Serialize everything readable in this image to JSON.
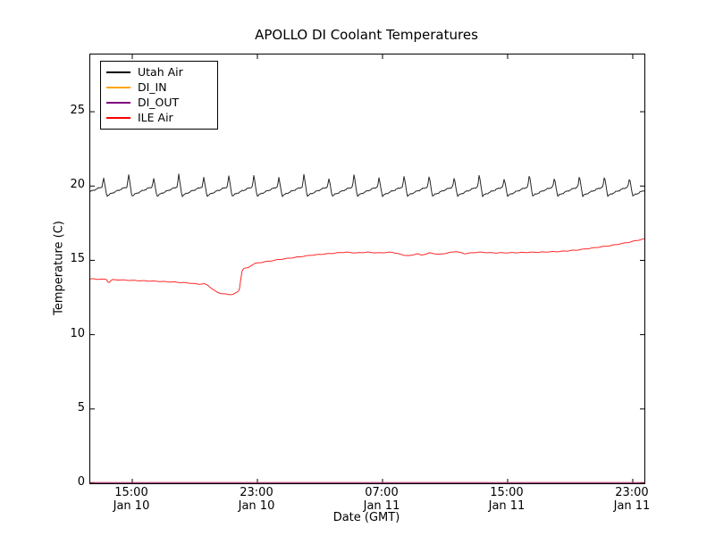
{
  "title": "APOLLO DI Coolant Temperatures",
  "chart_data": {
    "type": "line",
    "title": "APOLLO DI Coolant Temperatures",
    "xlabel": "Date (GMT)",
    "ylabel": "Temperature (C)",
    "ylim": [
      0,
      28.85
    ],
    "grid": false,
    "legend_position": "upper-left",
    "y_ticks": [
      {
        "label": "0",
        "value": 0
      },
      {
        "label": "5",
        "value": 5
      },
      {
        "label": "10",
        "value": 10
      },
      {
        "label": "15",
        "value": 15
      },
      {
        "label": "20",
        "value": 20
      },
      {
        "label": "25",
        "value": 25
      }
    ],
    "x_ticks": [
      {
        "time": "15:00",
        "date": "Jan 10",
        "frac": 0.0758
      },
      {
        "time": "23:00",
        "date": "Jan 10",
        "frac": 0.3016
      },
      {
        "time": "07:00",
        "date": "Jan 11",
        "frac": 0.5274
      },
      {
        "time": "15:00",
        "date": "Jan 11",
        "frac": 0.7532
      },
      {
        "time": "23:00",
        "date": "Jan 11",
        "frac": 0.979
      }
    ],
    "series": [
      {
        "name": "Utah Air",
        "color": "#000000",
        "type": "sawtooth",
        "trough_c": 19.32,
        "shoulder_c": 19.95,
        "peak_c": 20.65,
        "peak_variation_c": 0.15,
        "period_frac": 0.0452,
        "first_peak_frac": 0.024
      },
      {
        "name": "DI_IN",
        "color": "#ffa500",
        "type": "constant",
        "value_c": 0
      },
      {
        "name": "DI_OUT",
        "color": "#800080",
        "type": "constant",
        "value_c": 0
      },
      {
        "name": "ILE Air",
        "color": "#ff0000",
        "type": "keypoints",
        "points": [
          [
            0.0,
            13.75
          ],
          [
            0.029,
            13.72
          ],
          [
            0.033,
            13.5
          ],
          [
            0.04,
            13.7
          ],
          [
            0.1,
            13.62
          ],
          [
            0.145,
            13.55
          ],
          [
            0.177,
            13.48
          ],
          [
            0.194,
            13.4
          ],
          [
            0.206,
            13.42
          ],
          [
            0.213,
            13.3
          ],
          [
            0.221,
            13.05
          ],
          [
            0.229,
            12.85
          ],
          [
            0.239,
            12.75
          ],
          [
            0.25,
            12.7
          ],
          [
            0.258,
            12.72
          ],
          [
            0.265,
            12.85
          ],
          [
            0.269,
            13.0
          ],
          [
            0.271,
            13.6
          ],
          [
            0.274,
            14.3
          ],
          [
            0.277,
            14.45
          ],
          [
            0.285,
            14.5
          ],
          [
            0.29,
            14.65
          ],
          [
            0.298,
            14.8
          ],
          [
            0.315,
            14.9
          ],
          [
            0.34,
            15.05
          ],
          [
            0.37,
            15.2
          ],
          [
            0.4,
            15.35
          ],
          [
            0.43,
            15.45
          ],
          [
            0.46,
            15.55
          ],
          [
            0.48,
            15.5
          ],
          [
            0.5,
            15.55
          ],
          [
            0.52,
            15.5
          ],
          [
            0.545,
            15.55
          ],
          [
            0.56,
            15.4
          ],
          [
            0.575,
            15.3
          ],
          [
            0.59,
            15.45
          ],
          [
            0.597,
            15.35
          ],
          [
            0.613,
            15.5
          ],
          [
            0.63,
            15.4
          ],
          [
            0.645,
            15.5
          ],
          [
            0.66,
            15.6
          ],
          [
            0.675,
            15.45
          ],
          [
            0.7,
            15.55
          ],
          [
            0.73,
            15.5
          ],
          [
            0.77,
            15.52
          ],
          [
            0.81,
            15.55
          ],
          [
            0.85,
            15.6
          ],
          [
            0.88,
            15.7
          ],
          [
            0.91,
            15.85
          ],
          [
            0.94,
            16.0
          ],
          [
            0.97,
            16.2
          ],
          [
            1.0,
            16.45
          ]
        ]
      }
    ]
  }
}
